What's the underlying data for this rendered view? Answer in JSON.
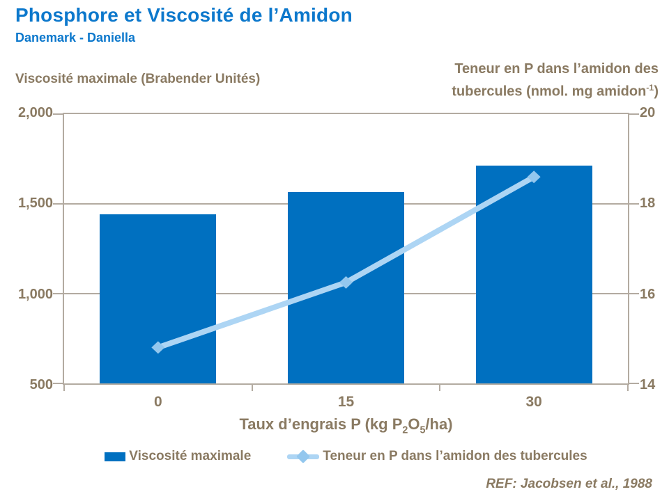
{
  "header": {
    "title": "Phosphore et Viscosité de l’Amidon",
    "subtitle": "Danemark - Daniella"
  },
  "left_axis": {
    "title": "Viscosité maximale (Brabender Unités)",
    "ticks": [
      "2,000",
      "1,500",
      "1,000",
      "500"
    ]
  },
  "right_axis": {
    "title_line1": "Teneur en P dans l’amidon des",
    "title_line2_pre": "tubercules (nmol. mg amidon",
    "title_superscript": "-1",
    "title_line2_post": ")",
    "ticks": [
      "20",
      "18",
      "16",
      "14"
    ]
  },
  "x_axis": {
    "tick_labels": [
      "0",
      "15",
      "30"
    ],
    "title_pre": "Taux d’engrais P (kg P",
    "title_sub_1": "2",
    "title_mid": "O",
    "title_sub_2": "5",
    "title_post": "/ha)"
  },
  "legend": {
    "bar_label": "Viscosité maximale",
    "line_label": "Teneur en P dans l’amidon des tubercules"
  },
  "footer": {
    "reference": "REF: Jacobsen et al., 1988"
  },
  "colors": {
    "title_blue": "#0C78CC",
    "bar_blue": "#0070C0",
    "line_light_blue": "#ADD5F4",
    "marker_light_blue": "#93C7EE",
    "tan_text": "#8A7A62",
    "axis_grid": "#B3ABA1"
  },
  "chart_data": {
    "type": "combo",
    "title": "Phosphore et Viscosité de l’Amidon",
    "subtitle": "Danemark - Daniella",
    "categories": [
      "0",
      "15",
      "30"
    ],
    "series": [
      {
        "name": "Viscosité maximale",
        "type": "bar",
        "axis": "left",
        "values": [
          1440,
          1565,
          1715
        ]
      },
      {
        "name": "Teneur en P dans l’amidon des tubercules",
        "type": "line",
        "axis": "right",
        "values": [
          14.8,
          16.25,
          18.6
        ]
      }
    ],
    "xlabel": "Taux d’engrais P (kg P2O5/ha)",
    "left_ylabel": "Viscosité maximale (Brabender Unités)",
    "right_ylabel": "Teneur en P dans l’amidon des tubercules (nmol. mg amidon-1)",
    "left_ylim": [
      500,
      2000
    ],
    "left_tick_step": 500,
    "right_ylim": [
      14,
      20
    ],
    "right_tick_step": 2,
    "grid": "horizontal",
    "legend_position": "bottom",
    "reference": "REF: Jacobsen et al., 1988"
  }
}
